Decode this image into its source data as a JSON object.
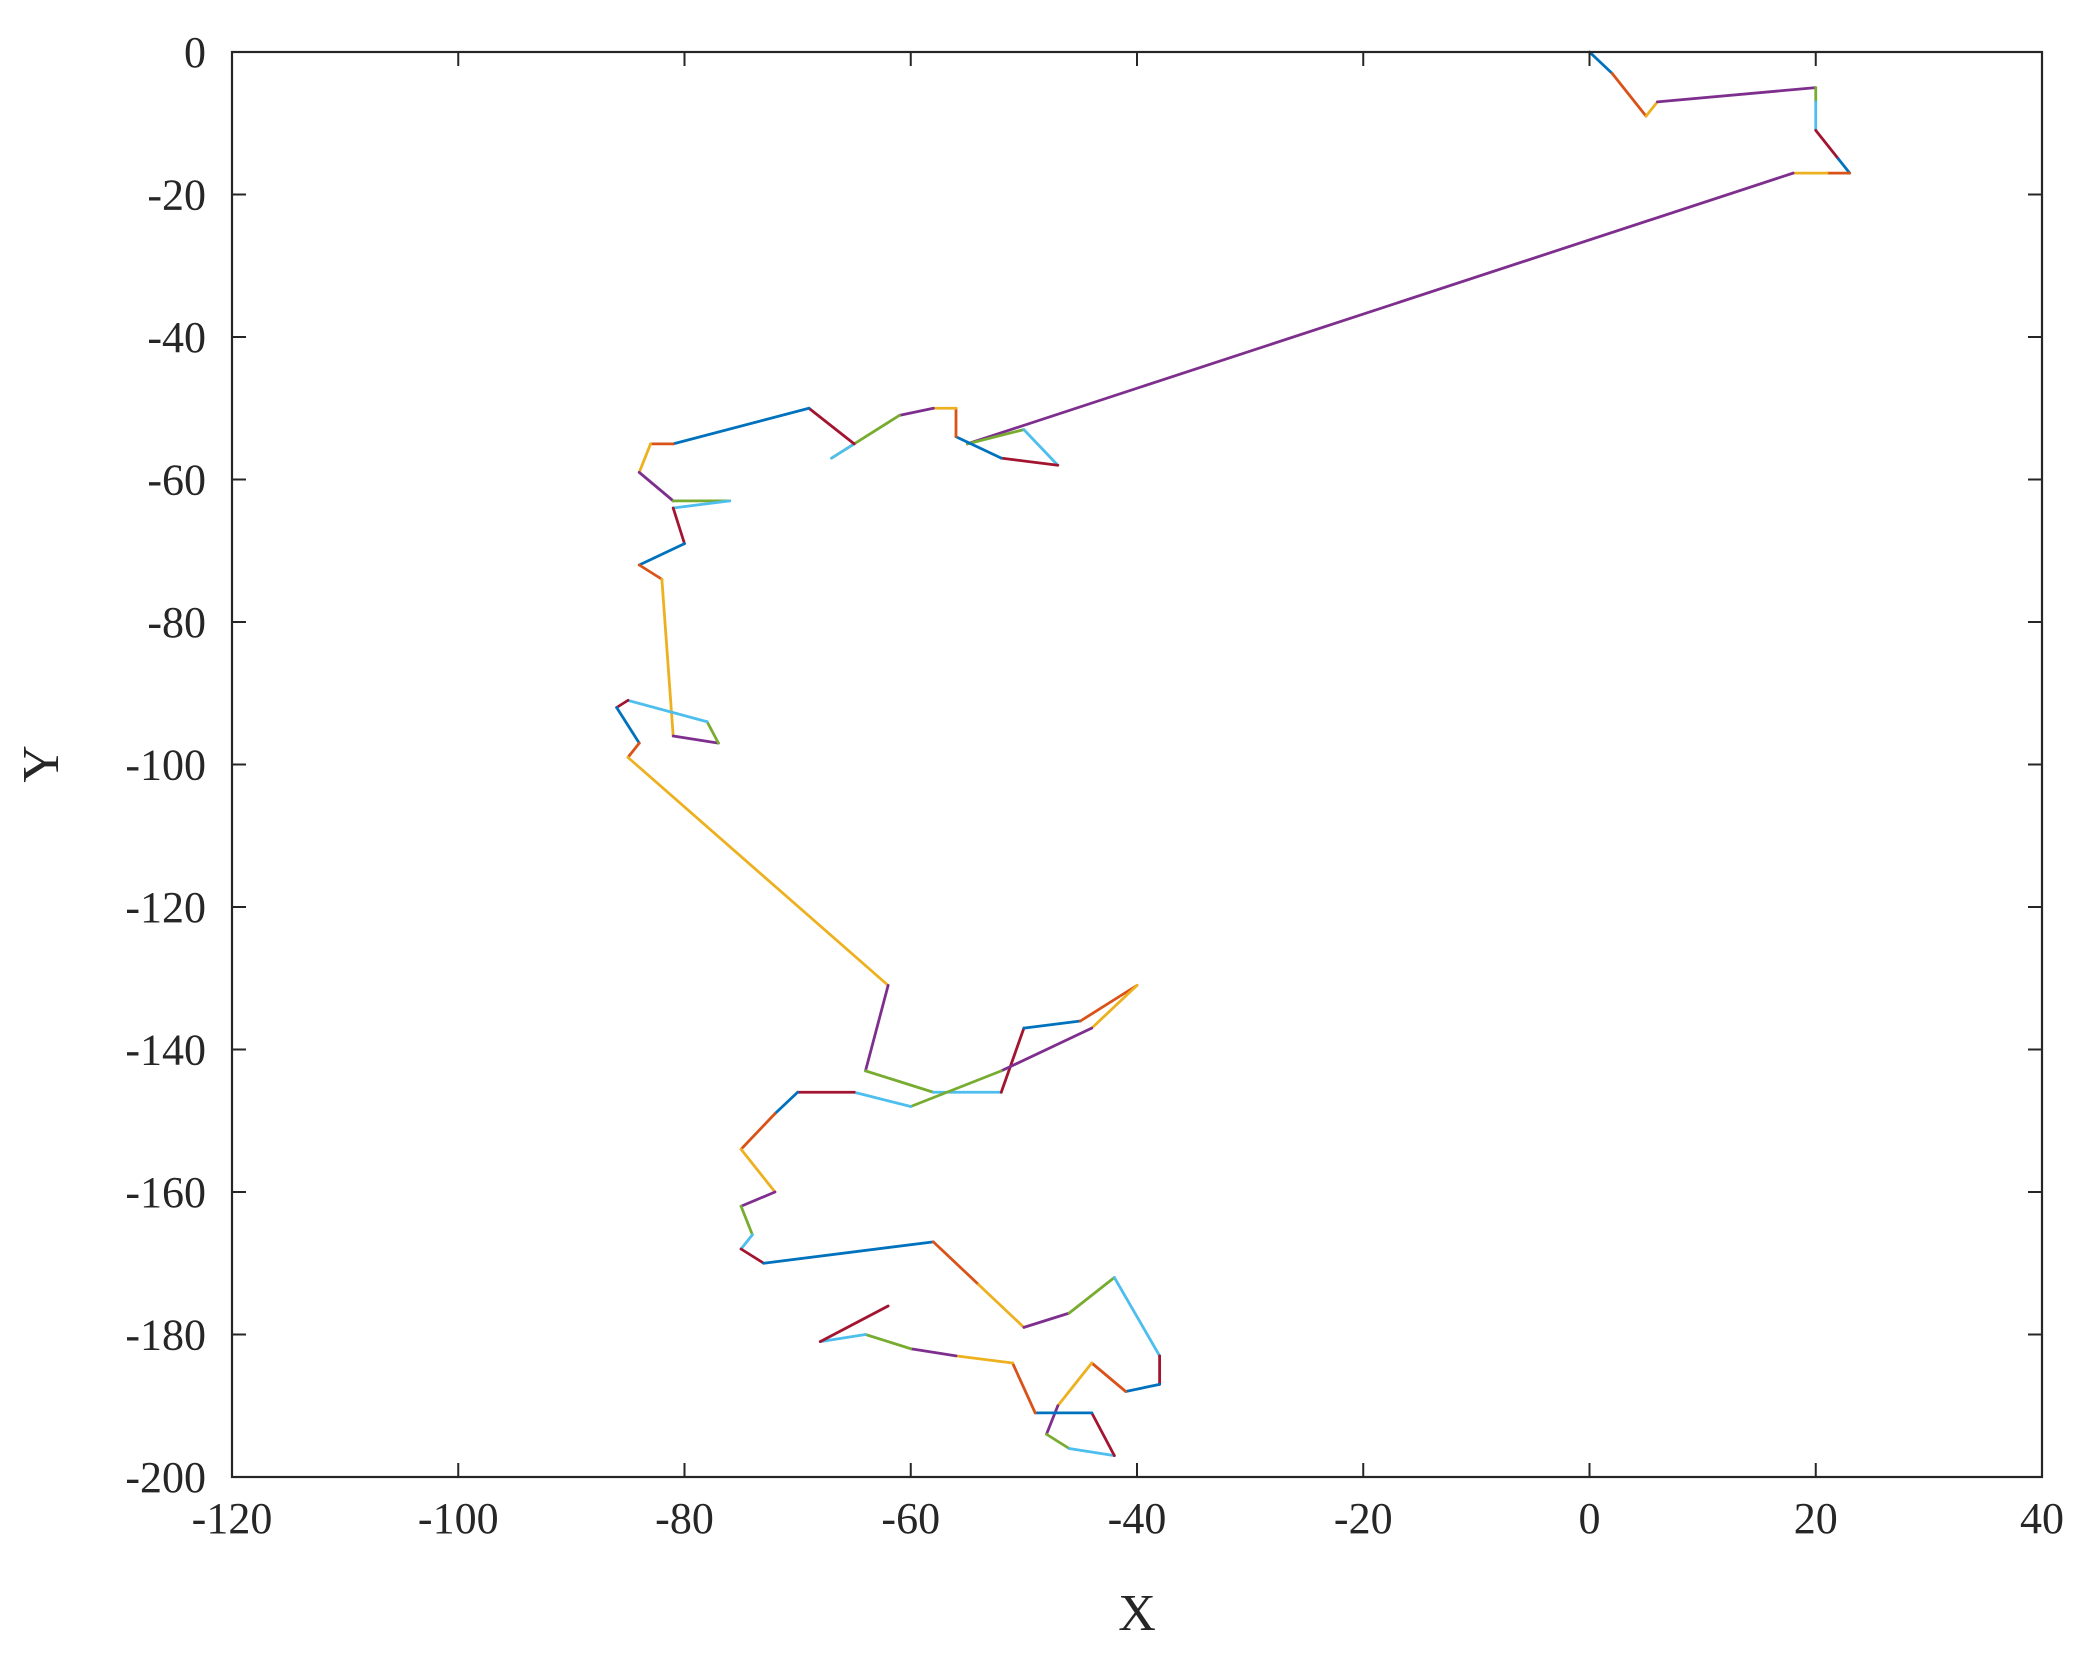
{
  "chart_data": {
    "type": "line",
    "title": "",
    "xlabel": "X",
    "ylabel": "Y",
    "xlim": [
      -120,
      40
    ],
    "ylim": [
      -200,
      0
    ],
    "xticks": [
      -120,
      -100,
      -80,
      -60,
      -40,
      -20,
      0,
      20,
      40
    ],
    "yticks": [
      0,
      -20,
      -40,
      -60,
      -80,
      -100,
      -120,
      -140,
      -160,
      -180,
      -200
    ],
    "xtick_labels": [
      "-120",
      "-100",
      "-80",
      "-60",
      "-40",
      "-20",
      "0",
      "20",
      "40"
    ],
    "ytick_labels": [
      "0",
      "-20",
      "-40",
      "-60",
      "-80",
      "-100",
      "-120",
      "-140",
      "-160",
      "-180",
      "-200"
    ],
    "grid": false,
    "legend": "none",
    "color_cycle": [
      "#0072BD",
      "#D95319",
      "#EDB120",
      "#7E2F8E",
      "#77AC30",
      "#4DBEEE",
      "#A2142F"
    ],
    "path": [
      [
        0,
        0
      ],
      [
        2,
        -3
      ],
      [
        5,
        -9
      ],
      [
        6,
        -7
      ],
      [
        20,
        -5
      ],
      [
        20,
        -7
      ],
      [
        20,
        -11
      ],
      [
        22,
        -15
      ],
      [
        23,
        -17
      ],
      [
        21,
        -17
      ],
      [
        18,
        -17
      ],
      [
        -55,
        -55
      ],
      [
        -50,
        -53
      ],
      [
        -47,
        -58
      ],
      [
        -52,
        -57
      ],
      [
        -56,
        -54
      ],
      [
        -56,
        -50
      ],
      [
        -58,
        -50
      ],
      [
        -61,
        -51
      ],
      [
        -67,
        -57
      ],
      [
        -65,
        -55
      ],
      [
        -69,
        -50
      ],
      [
        -81,
        -55
      ],
      [
        -83,
        -55
      ],
      [
        -84,
        -59
      ],
      [
        -81,
        -63
      ],
      [
        -76,
        -63
      ],
      [
        -81,
        -64
      ],
      [
        -80,
        -69
      ],
      [
        -84,
        -72
      ],
      [
        -82,
        -74
      ],
      [
        -81,
        -96
      ],
      [
        -77,
        -97
      ],
      [
        -78,
        -94
      ],
      [
        -85,
        -91
      ],
      [
        -86,
        -92
      ],
      [
        -84,
        -97
      ],
      [
        -85,
        -99
      ],
      [
        -62,
        -131
      ],
      [
        -64,
        -143
      ],
      [
        -58,
        -146
      ],
      [
        -52,
        -146
      ],
      [
        -50,
        -137
      ],
      [
        -45,
        -136
      ],
      [
        -40,
        -131
      ],
      [
        -44,
        -137
      ],
      [
        -52,
        -143
      ],
      [
        -60,
        -148
      ],
      [
        -65,
        -146
      ],
      [
        -70,
        -146
      ],
      [
        -72,
        -149
      ],
      [
        -75,
        -154
      ],
      [
        -72,
        -160
      ],
      [
        -75,
        -162
      ],
      [
        -74,
        -166
      ],
      [
        -75,
        -168
      ],
      [
        -73,
        -170
      ],
      [
        -58,
        -167
      ],
      [
        -54,
        -173
      ],
      [
        -50,
        -179
      ],
      [
        -46,
        -177
      ],
      [
        -42,
        -172
      ],
      [
        -38,
        -183
      ],
      [
        -38,
        -187
      ],
      [
        -41,
        -188
      ],
      [
        -44,
        -184
      ],
      [
        -47,
        -190
      ],
      [
        -48,
        -194
      ],
      [
        -46,
        -196
      ],
      [
        -42,
        -197
      ],
      [
        -44,
        -191
      ],
      [
        -49,
        -191
      ],
      [
        -51,
        -184
      ],
      [
        -56,
        -183
      ],
      [
        -60,
        -182
      ],
      [
        -64,
        -180
      ],
      [
        -68,
        -181
      ],
      [
        -62,
        -176
      ]
    ]
  }
}
